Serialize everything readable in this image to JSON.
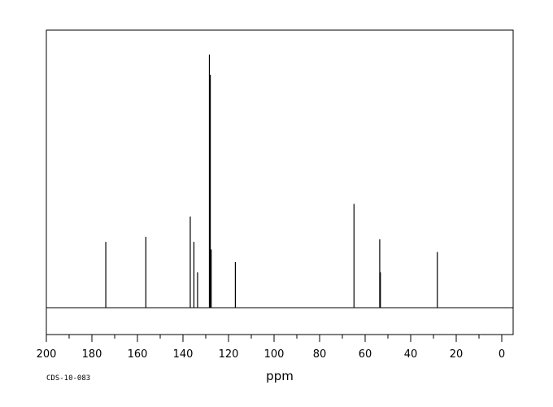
{
  "chart_data": {
    "type": "line",
    "subtype": "nmr-stick-spectrum",
    "title": "",
    "xlabel": "ppm",
    "ylabel": "",
    "x_reversed": true,
    "xlim": [
      200,
      -5
    ],
    "ylim": [
      0,
      1
    ],
    "grid": false,
    "x_ticks": [
      200,
      180,
      160,
      140,
      120,
      100,
      80,
      60,
      40,
      20,
      0
    ],
    "x_tick_labels": [
      "200",
      "180",
      "160",
      "140",
      "120",
      "100",
      "80",
      "60",
      "40",
      "20",
      "0"
    ],
    "peaks": [
      {
        "ppm": 173.9,
        "intensity": 0.26
      },
      {
        "ppm": 156.3,
        "intensity": 0.28
      },
      {
        "ppm": 136.8,
        "intensity": 0.36
      },
      {
        "ppm": 135.2,
        "intensity": 0.26
      },
      {
        "ppm": 133.6,
        "intensity": 0.14
      },
      {
        "ppm": 128.4,
        "intensity": 1.0
      },
      {
        "ppm": 128.0,
        "intensity": 0.92
      },
      {
        "ppm": 127.6,
        "intensity": 0.23
      },
      {
        "ppm": 117.0,
        "intensity": 0.18
      },
      {
        "ppm": 64.9,
        "intensity": 0.41
      },
      {
        "ppm": 53.6,
        "intensity": 0.27
      },
      {
        "ppm": 53.3,
        "intensity": 0.14
      },
      {
        "ppm": 28.3,
        "intensity": 0.22
      }
    ]
  },
  "footer": {
    "code": "CDS-10-083"
  }
}
